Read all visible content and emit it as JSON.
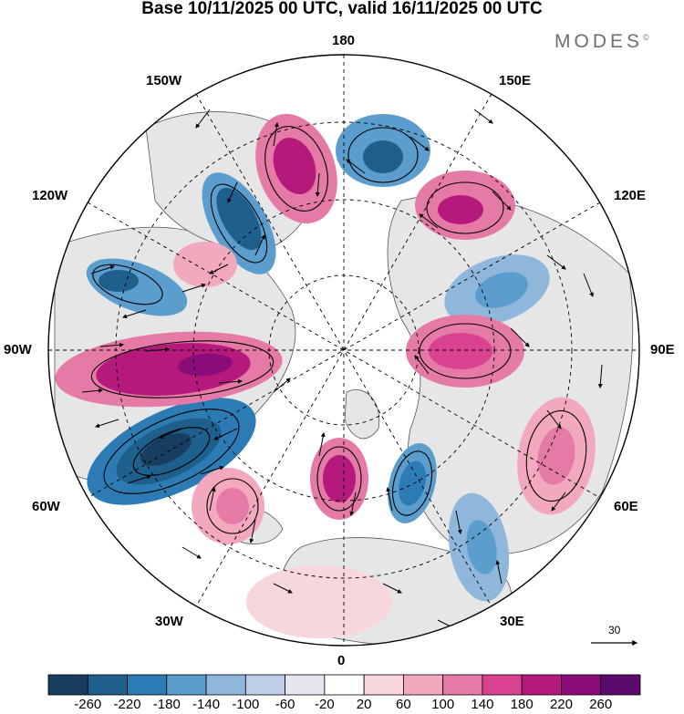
{
  "title": "Base 10/11/2025 00 UTC, valid 16/11/2025 00 UTC",
  "brand": "MODES",
  "brand_mark": "©",
  "longitude_labels": {
    "top": "180",
    "bottom": "0",
    "left": "90W",
    "right": "90E",
    "top_left": "150W",
    "top_right": "150E",
    "upper_left": "120W",
    "upper_right": "120E",
    "lower_left": "60W",
    "lower_right": "60E",
    "bottom_left": "30W",
    "bottom_right": "30E"
  },
  "reference_vector": {
    "label": "30"
  },
  "colorbar": {
    "colors": [
      "#173e5e",
      "#1e5f8c",
      "#2d7bb5",
      "#5b9dcc",
      "#8fb6db",
      "#c0cde6",
      "#e6e6f2",
      "#ffffff",
      "#f7d6dc",
      "#f2a9bd",
      "#e67aa6",
      "#d9428f",
      "#b5197c",
      "#8a0c79",
      "#5c0a6e"
    ],
    "tick_labels": [
      "-260",
      "-220",
      "-180",
      "-140",
      "-100",
      "-60",
      "-20",
      "20",
      "60",
      "100",
      "140",
      "180",
      "220",
      "260"
    ]
  },
  "colors": {
    "land": "#e6e6e6",
    "ocean": "#ffffff",
    "coast": "#555555",
    "grid": "#000000"
  }
}
